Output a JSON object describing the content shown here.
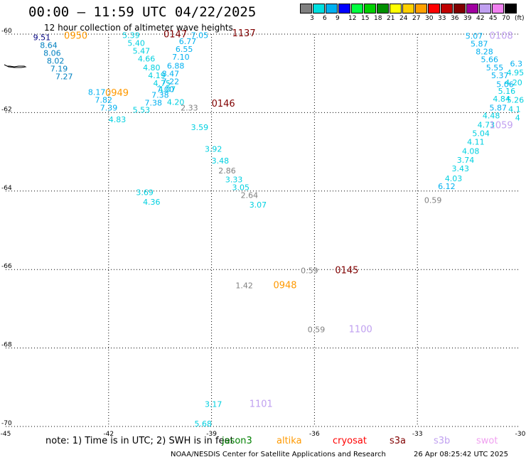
{
  "header": {
    "title": "00:00 – 11:59 UTC 04/22/2025",
    "subtitle": "12 hour collection of altimeter wave heights"
  },
  "legend": {
    "colors": [
      "#808080",
      "#00e0e0",
      "#00b0f0",
      "#0000ff",
      "#00ff40",
      "#00d000",
      "#009000",
      "#ffff00",
      "#ffd000",
      "#ffa000",
      "#ff0000",
      "#c00000",
      "#800000",
      "#a000a0",
      "#c0a0f0",
      "#f080f0",
      "#000000"
    ],
    "labels": [
      "3",
      "6",
      "9",
      "12",
      "15",
      "18",
      "21",
      "24",
      "27",
      "30",
      "33",
      "36",
      "39",
      "42",
      "45",
      "70",
      "(ft)"
    ]
  },
  "axes": {
    "x_ticks": [
      "-45",
      "-42",
      "-39",
      "-36",
      "-33",
      "-30"
    ],
    "y_ticks": [
      "-60",
      "-62",
      "-64",
      "-66",
      "-68",
      "-70"
    ]
  },
  "chart_data": {
    "type": "scatter",
    "xlim": [
      -45,
      -30
    ],
    "ylim": [
      -70,
      -60
    ],
    "points": [
      {
        "lon": -44.2,
        "lat": -60.15,
        "text": "9.51",
        "color": "#000080"
      },
      {
        "lon": -44.0,
        "lat": -60.35,
        "text": "8.64",
        "color": "#0080c0"
      },
      {
        "lon": -43.9,
        "lat": -60.55,
        "text": "8.06",
        "color": "#0080c0"
      },
      {
        "lon": -43.8,
        "lat": -60.75,
        "text": "8.02",
        "color": "#0080c0"
      },
      {
        "lon": -43.7,
        "lat": -60.95,
        "text": "7.19",
        "color": "#0080c0"
      },
      {
        "lon": -43.55,
        "lat": -61.15,
        "text": "7.27",
        "color": "#0080c0"
      },
      {
        "lon": -42.6,
        "lat": -61.55,
        "text": "8.17",
        "color": "#00b0f0"
      },
      {
        "lon": -42.4,
        "lat": -61.75,
        "text": "7.82",
        "color": "#00b0f0"
      },
      {
        "lon": -42.25,
        "lat": -61.95,
        "text": "7.39",
        "color": "#00b0f0"
      },
      {
        "lon": -42.0,
        "lat": -62.25,
        "text": "4.83",
        "color": "#00d0e0"
      },
      {
        "lon": -41.6,
        "lat": -60.1,
        "text": "5.39",
        "color": "#00d0e0"
      },
      {
        "lon": -41.45,
        "lat": -60.3,
        "text": "5.40",
        "color": "#00d0e0"
      },
      {
        "lon": -41.3,
        "lat": -60.5,
        "text": "5.47",
        "color": "#00d0e0"
      },
      {
        "lon": -41.15,
        "lat": -60.7,
        "text": "4.66",
        "color": "#00d0e0"
      },
      {
        "lon": -41.0,
        "lat": -60.92,
        "text": "4.80",
        "color": "#00d0e0"
      },
      {
        "lon": -40.85,
        "lat": -61.12,
        "text": "4.19",
        "color": "#00d0e0"
      },
      {
        "lon": -40.7,
        "lat": -61.32,
        "text": "4.75",
        "color": "#00d0e0"
      },
      {
        "lon": -40.55,
        "lat": -61.48,
        "text": "4.07",
        "color": "#00d0e0"
      },
      {
        "lon": -40.75,
        "lat": -61.62,
        "text": "7.38",
        "color": "#00b0f0"
      },
      {
        "lon": -40.95,
        "lat": -61.82,
        "text": "7.38",
        "color": "#00b0f0"
      },
      {
        "lon": -41.3,
        "lat": -62.0,
        "text": "5.53",
        "color": "#00d0e0"
      },
      {
        "lon": -39.95,
        "lat": -60.25,
        "text": "6.77",
        "color": "#00b0f0"
      },
      {
        "lon": -40.05,
        "lat": -60.45,
        "text": "6.55",
        "color": "#00b0f0"
      },
      {
        "lon": -40.15,
        "lat": -60.65,
        "text": "7.10",
        "color": "#00b0f0"
      },
      {
        "lon": -40.3,
        "lat": -60.88,
        "text": "6.88",
        "color": "#00b0f0"
      },
      {
        "lon": -40.45,
        "lat": -61.08,
        "text": "8.47",
        "color": "#00b0f0"
      },
      {
        "lon": -40.45,
        "lat": -61.28,
        "text": "7.22",
        "color": "#00b0f0"
      },
      {
        "lon": -40.6,
        "lat": -61.48,
        "text": "7.00",
        "color": "#00b0f0"
      },
      {
        "lon": -40.3,
        "lat": -61.8,
        "text": "4.20",
        "color": "#00d0e0"
      },
      {
        "lon": -39.6,
        "lat": -60.1,
        "text": "7.05",
        "color": "#00b0f0"
      },
      {
        "lon": -39.9,
        "lat": -61.95,
        "text": "2.33",
        "color": "#808080"
      },
      {
        "lon": -39.6,
        "lat": -62.45,
        "text": "3.59",
        "color": "#00d0e0"
      },
      {
        "lon": -39.2,
        "lat": -63.0,
        "text": "3.92",
        "color": "#00d0e0"
      },
      {
        "lon": -39.0,
        "lat": -63.3,
        "text": "3.48",
        "color": "#00d0e0"
      },
      {
        "lon": -38.8,
        "lat": -63.55,
        "text": "2.86",
        "color": "#808080"
      },
      {
        "lon": -38.6,
        "lat": -63.78,
        "text": "3.33",
        "color": "#00d0e0"
      },
      {
        "lon": -38.4,
        "lat": -63.98,
        "text": "3.05",
        "color": "#00d0e0"
      },
      {
        "lon": -38.15,
        "lat": -64.18,
        "text": "2.64",
        "color": "#808080"
      },
      {
        "lon": -37.9,
        "lat": -64.42,
        "text": "3.07",
        "color": "#00d0e0"
      },
      {
        "lon": -41.2,
        "lat": -64.1,
        "text": "3.69",
        "color": "#00d0e0"
      },
      {
        "lon": -41.0,
        "lat": -64.35,
        "text": "4.36",
        "color": "#00d0e0"
      },
      {
        "lon": -36.4,
        "lat": -66.1,
        "text": "0.59",
        "color": "#808080"
      },
      {
        "lon": -38.3,
        "lat": -66.48,
        "text": "1.42",
        "color": "#808080"
      },
      {
        "lon": -36.2,
        "lat": -67.6,
        "text": "0.59",
        "color": "#808080"
      },
      {
        "lon": -39.2,
        "lat": -69.5,
        "text": "3.17",
        "color": "#00d0e0"
      },
      {
        "lon": -39.5,
        "lat": -70.0,
        "text": "5.68",
        "color": "#00d0e0"
      },
      {
        "lon": -32.8,
        "lat": -64.3,
        "text": "0.59",
        "color": "#808080"
      },
      {
        "lon": -32.4,
        "lat": -63.95,
        "text": "6.12",
        "color": "#00b0f0"
      },
      {
        "lon": -32.2,
        "lat": -63.75,
        "text": "4.03",
        "color": "#00d0e0"
      },
      {
        "lon": -32.0,
        "lat": -63.5,
        "text": "3.43",
        "color": "#00d0e0"
      },
      {
        "lon": -31.85,
        "lat": -63.28,
        "text": "3.74",
        "color": "#00d0e0"
      },
      {
        "lon": -31.7,
        "lat": -63.05,
        "text": "4.08",
        "color": "#00d0e0"
      },
      {
        "lon": -31.55,
        "lat": -62.82,
        "text": "4.11",
        "color": "#00d0e0"
      },
      {
        "lon": -31.4,
        "lat": -62.6,
        "text": "5.04",
        "color": "#00d0e0"
      },
      {
        "lon": -31.25,
        "lat": -62.38,
        "text": "4.73",
        "color": "#00d0e0"
      },
      {
        "lon": -31.1,
        "lat": -62.15,
        "text": "4.48",
        "color": "#00d0e0"
      },
      {
        "lon": -30.9,
        "lat": -61.95,
        "text": "5.87",
        "color": "#00b0f0"
      },
      {
        "lon": -30.8,
        "lat": -61.72,
        "text": "4.84",
        "color": "#00d0e0"
      },
      {
        "lon": -30.65,
        "lat": -61.52,
        "text": "5.16",
        "color": "#00d0e0"
      },
      {
        "lon": -30.7,
        "lat": -61.35,
        "text": "5.06",
        "color": "#00b0f0"
      },
      {
        "lon": -30.85,
        "lat": -61.12,
        "text": "5.37",
        "color": "#00b0f0"
      },
      {
        "lon": -31.0,
        "lat": -60.92,
        "text": "5.55",
        "color": "#00b0f0"
      },
      {
        "lon": -31.15,
        "lat": -60.72,
        "text": "5.66",
        "color": "#00b0f0"
      },
      {
        "lon": -31.3,
        "lat": -60.52,
        "text": "8.28",
        "color": "#00b0f0"
      },
      {
        "lon": -31.45,
        "lat": -60.32,
        "text": "5.87",
        "color": "#00b0f0"
      },
      {
        "lon": -31.6,
        "lat": -60.12,
        "text": "5.07",
        "color": "#00b0f0"
      },
      {
        "lon": -30.45,
        "lat": -61.3,
        "text": "4.20",
        "color": "#00d0e0"
      },
      {
        "lon": -30.4,
        "lat": -61.05,
        "text": "4.95",
        "color": "#00d0e0"
      },
      {
        "lon": -30.3,
        "lat": -60.82,
        "text": "6.3",
        "color": "#00b0f0"
      },
      {
        "lon": -30.4,
        "lat": -61.75,
        "text": "5.26",
        "color": "#00d0e0"
      },
      {
        "lon": -30.35,
        "lat": -61.98,
        "text": "4.1",
        "color": "#00d0e0"
      },
      {
        "lon": -30.15,
        "lat": -62.2,
        "text": "4",
        "color": "#00d0e0"
      }
    ],
    "pass_labels": [
      {
        "lon": -43.3,
        "lat": -60.12,
        "text": "0950",
        "color": "#ff9900"
      },
      {
        "lon": -42.1,
        "lat": -61.58,
        "text": "0949",
        "color": "#ff9900"
      },
      {
        "lon": -40.4,
        "lat": -60.08,
        "text": "0147",
        "color": "#800000"
      },
      {
        "lon": -38.4,
        "lat": -60.05,
        "text": "1137",
        "color": "#800000"
      },
      {
        "lon": -39.0,
        "lat": -61.85,
        "text": "0146",
        "color": "#800000"
      },
      {
        "lon": -35.4,
        "lat": -66.1,
        "text": "0145",
        "color": "#800000"
      },
      {
        "lon": -37.2,
        "lat": -66.48,
        "text": "0948",
        "color": "#ff9900"
      },
      {
        "lon": -35.0,
        "lat": -67.6,
        "text": "1100",
        "color": "#c0a0f0"
      },
      {
        "lon": -37.9,
        "lat": -69.5,
        "text": "1101",
        "color": "#c0a0f0"
      },
      {
        "lon": -30.9,
        "lat": -60.12,
        "text": "0108",
        "color": "#c0a0f0"
      },
      {
        "lon": -30.9,
        "lat": -62.4,
        "text": "1059",
        "color": "#c0a0f0"
      }
    ]
  },
  "note": {
    "text": "note:  1) Time is in UTC;  2) SWH is in feet",
    "satellites": [
      {
        "name": "jason3",
        "color": "#008000"
      },
      {
        "name": "altika",
        "color": "#ff9900"
      },
      {
        "name": "cryosat",
        "color": "#ff0000"
      },
      {
        "name": "s3a",
        "color": "#800000"
      },
      {
        "name": "s3b",
        "color": "#c0a0f0"
      },
      {
        "name": "swot",
        "color": "#f0a0f0"
      }
    ]
  },
  "footer": {
    "credit": "NOAA/NESDIS Center for Satellite Applications and Research",
    "generated": "26 Apr 08:25:42 UTC 2025"
  }
}
